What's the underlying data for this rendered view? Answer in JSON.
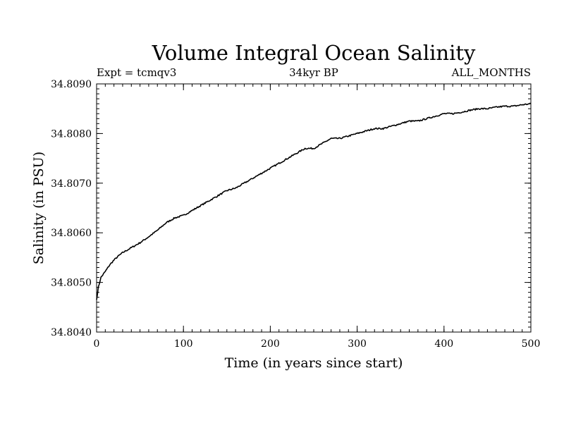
{
  "chart_data": {
    "type": "line",
    "title": "Volume Integral Ocean Salinity",
    "subtitle_left": "Expt = tcmqv3",
    "subtitle_center": "34kyr BP",
    "subtitle_right": "ALL_MONTHS",
    "xlabel": "Time (in years since start)",
    "ylabel": "Salinity (in PSU)",
    "xlim": [
      0,
      500
    ],
    "ylim": [
      34.804,
      34.809
    ],
    "x_ticks": [
      0,
      100,
      200,
      300,
      400,
      500
    ],
    "x_tick_labels": [
      "0",
      "100",
      "200",
      "300",
      "400",
      "500"
    ],
    "y_ticks": [
      34.804,
      34.805,
      34.806,
      34.807,
      34.808,
      34.809
    ],
    "y_tick_labels": [
      "34.8040",
      "34.8050",
      "34.8060",
      "34.8070",
      "34.8080",
      "34.8090"
    ],
    "grid": false,
    "line_color": "#000000",
    "series": [
      {
        "x": [
          0,
          2,
          5,
          10,
          15,
          20,
          25,
          30,
          40,
          50,
          60,
          70,
          80,
          90,
          100,
          110,
          120,
          130,
          140,
          150,
          160,
          170,
          180,
          190,
          200,
          210,
          220,
          230,
          240,
          250,
          260,
          270,
          280,
          290,
          300,
          310,
          320,
          330,
          340,
          350,
          360,
          370,
          380,
          390,
          400,
          410,
          420,
          430,
          440,
          450,
          460,
          470,
          480,
          490,
          500
        ],
        "y": [
          34.80465,
          34.8049,
          34.8051,
          34.80522,
          34.80535,
          34.80545,
          34.80553,
          34.8056,
          34.8057,
          34.8058,
          34.80592,
          34.80605,
          34.8062,
          34.8063,
          34.80635,
          34.80645,
          34.80655,
          34.80665,
          34.80675,
          34.80685,
          34.8069,
          34.807,
          34.8071,
          34.8072,
          34.8073,
          34.8074,
          34.8075,
          34.8076,
          34.8077,
          34.8077,
          34.8078,
          34.8079,
          34.8079,
          34.80795,
          34.808,
          34.80805,
          34.8081,
          34.8081,
          34.80815,
          34.8082,
          34.80825,
          34.80825,
          34.8083,
          34.80835,
          34.8084,
          34.8084,
          34.80843,
          34.80847,
          34.8085,
          34.8085,
          34.80853,
          34.80855,
          34.80855,
          34.80858,
          34.8086
        ]
      }
    ]
  }
}
